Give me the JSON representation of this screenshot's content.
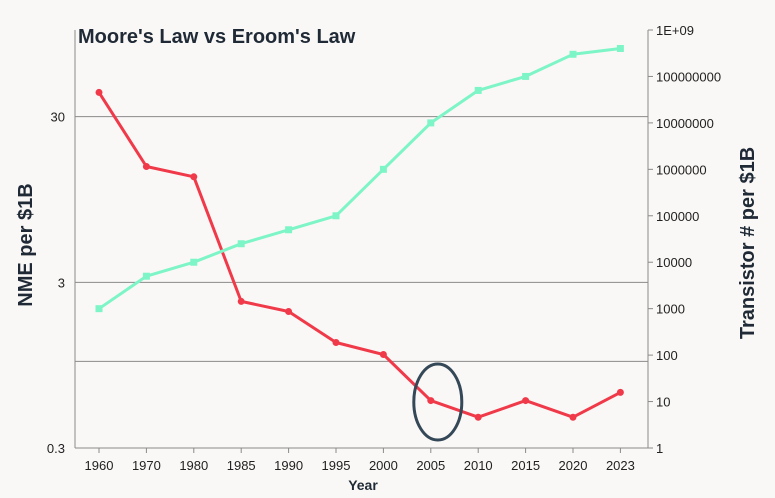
{
  "chart_data": {
    "type": "line",
    "title": "Moore's Law vs Eroom's Law",
    "xlabel": "Year",
    "ylabel_left": "NME per $1B",
    "ylabel_right": "Transistor # per $1B",
    "categories": [
      "1960",
      "1970",
      "1980",
      "1985",
      "1990",
      "1995",
      "2000",
      "2005",
      "2010",
      "2015",
      "2020",
      "2023"
    ],
    "left_axis": {
      "scale": "log",
      "range": [
        0.3,
        100
      ],
      "ticks": [
        0.3,
        3,
        30
      ],
      "tick_labels": [
        "0.3",
        "3",
        "30"
      ]
    },
    "right_axis": {
      "scale": "log",
      "range": [
        1,
        1000000000
      ],
      "tick_labels": [
        "1",
        "10",
        "100",
        "1000",
        "10000",
        "100000",
        "1000000",
        "10000000",
        "100000000",
        "1E+09"
      ]
    },
    "gridlines_left": [
      1,
      3,
      30
    ],
    "series": [
      {
        "axis": "left",
        "color": "#f03a4a",
        "marker": "circle",
        "values": [
          42,
          15,
          13,
          2.3,
          2.0,
          1.3,
          1.1,
          0.58,
          0.46,
          0.58,
          0.46,
          0.65
        ]
      },
      {
        "axis": "right",
        "color": "#7df5c7",
        "marker": "square",
        "values": [
          1000,
          5000,
          10000,
          25000,
          50000,
          100000,
          1000000,
          10000000,
          50000000,
          100000000,
          300000000,
          400000000
        ]
      }
    ],
    "annotations": [
      {
        "shape": "ellipse",
        "at_category": "2005",
        "color": "#344858"
      }
    ]
  }
}
